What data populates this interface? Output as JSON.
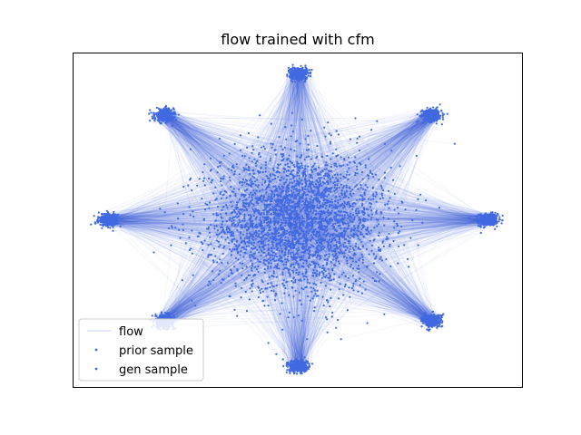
{
  "chart_data": {
    "type": "scatter",
    "title": "flow trained with cfm",
    "xlabel": "",
    "ylabel": "",
    "xlim": [
      -5.2,
      5.2
    ],
    "ylim": [
      -4.8,
      4.8
    ],
    "axis_ticks": "hidden",
    "grid": false,
    "legend_position": "lower-left",
    "point_color": "#4169e1",
    "series": [
      {
        "name": "flow",
        "kind": "line",
        "description": "trajectories from prior samples to the 8 target modes",
        "color": "#4169e1"
      },
      {
        "name": "prior sample",
        "kind": "scatter",
        "distribution": "gaussian",
        "center": [
          0,
          0
        ],
        "std": 1.0,
        "color": "#4169e1"
      },
      {
        "name": "gen sample",
        "kind": "scatter",
        "distribution": "8 gaussian modes on a circle",
        "mode_centers": [
          [
            4.4,
            0.0
          ],
          [
            3.1,
            3.0
          ],
          [
            0.0,
            4.2
          ],
          [
            -3.1,
            3.0
          ],
          [
            -4.4,
            0.0
          ],
          [
            -3.1,
            -2.9
          ],
          [
            0.0,
            -4.2
          ],
          [
            3.1,
            -2.9
          ]
        ],
        "color": "#4169e1"
      }
    ]
  }
}
